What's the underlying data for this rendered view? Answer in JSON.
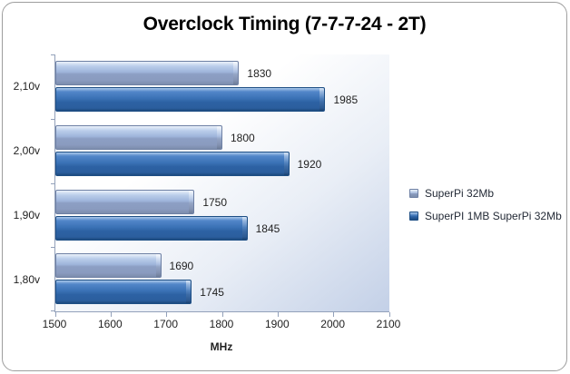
{
  "title": "Overclock Timing (7-7-7-24 - 2T)",
  "chart_data": {
    "type": "bar",
    "orientation": "horizontal",
    "title": "Overclock Timing (7-7-7-24 - 2T)",
    "categories": [
      "2,10v",
      "2,00v",
      "1,90v",
      "1,80v"
    ],
    "series": [
      {
        "name": "SuperPi 32Mb",
        "color": "#9db3d9",
        "values": [
          1830,
          1800,
          1750,
          1690
        ]
      },
      {
        "name": "SuperPI 1MB SuperPi 32Mb",
        "color": "#3a70b2",
        "values": [
          1985,
          1920,
          1845,
          1745
        ]
      }
    ],
    "xlabel": "MHz",
    "xlim": [
      1500,
      2100
    ],
    "xticks": [
      1500,
      1600,
      1700,
      1800,
      1900,
      2000,
      2100
    ],
    "grid": false,
    "legend_position": "right",
    "value_labels": true
  }
}
